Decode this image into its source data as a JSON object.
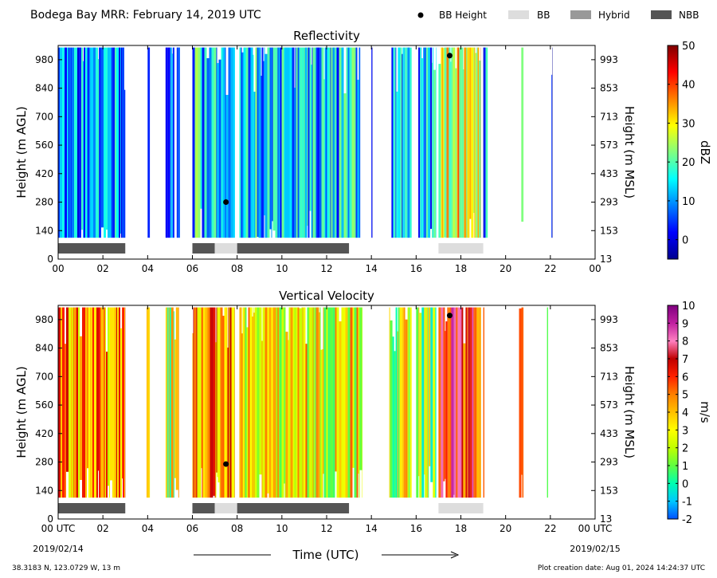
{
  "header": {
    "title": "Bodega Bay MRR:  February 14, 2019 UTC",
    "legend": [
      {
        "label": "BB Height",
        "kind": "dot",
        "color": "#000000"
      },
      {
        "label": "BB",
        "kind": "swatch",
        "color": "#dddddd"
      },
      {
        "label": "Hybrid",
        "kind": "swatch",
        "color": "#999999"
      },
      {
        "label": "NBB",
        "kind": "swatch",
        "color": "#555555"
      }
    ]
  },
  "footer": {
    "location": "38.3183 N, 123.0729 W, 13 m",
    "creation": "Plot creation date: Aug 01, 2024 14:24:37 UTC",
    "time_label": "Time (UTC)",
    "start_date": "2019/02/14",
    "end_date": "2019/02/15"
  },
  "chart_data": [
    {
      "type": "heatmap",
      "title": "Reflectivity",
      "ylabel": "Height (m AGL)",
      "y2label": "Height (m MSL)",
      "ylim": [
        0,
        1050
      ],
      "xlim": [
        0,
        24
      ],
      "x_ticks": [
        "00",
        "02",
        "04",
        "06",
        "08",
        "10",
        "12",
        "14",
        "16",
        "18",
        "20",
        "22",
        "00"
      ],
      "y_ticks": [
        0,
        140,
        280,
        420,
        560,
        700,
        840,
        980
      ],
      "y2_ticks": [
        "13",
        "153",
        "293",
        "433",
        "573",
        "713",
        "853",
        "993"
      ],
      "colorbar": {
        "label": "dBZ",
        "range": [
          -5,
          50
        ],
        "ticks": [
          "0",
          "10",
          "20",
          "30",
          "40",
          "50"
        ],
        "tick_values": [
          0,
          10,
          20,
          30,
          40,
          50
        ],
        "colors": [
          "#00008f",
          "#0000ff",
          "#0080ff",
          "#00ffff",
          "#80ff80",
          "#ffff00",
          "#ff8000",
          "#ff0000",
          "#800000"
        ]
      },
      "data_start_height_m": 105,
      "data_top_height_m": 1040,
      "precip_bands_hours": [
        [
          0,
          3
        ],
        [
          4.0,
          4.1
        ],
        [
          4.8,
          5.2
        ],
        [
          5.3,
          5.45
        ],
        [
          6.0,
          7.9
        ],
        [
          8.1,
          13.5
        ],
        [
          14.0,
          14.05
        ],
        [
          14.9,
          15.8
        ],
        [
          16.1,
          16.9
        ],
        [
          17.0,
          18.9
        ],
        [
          19.0,
          19.2
        ],
        [
          20.7,
          20.8
        ],
        [
          22.05,
          22.1
        ]
      ],
      "band_level_dbz": [
        9,
        10,
        7,
        9,
        14,
        13,
        8,
        9,
        12,
        28,
        9,
        16,
        2
      ],
      "bb_points": [
        {
          "hour": 7.5,
          "height_m": 280
        },
        {
          "hour": 17.5,
          "height_m": 1000
        }
      ],
      "classification": [
        {
          "start_hour": 0.0,
          "end_hour": 3.0,
          "class": "NBB"
        },
        {
          "start_hour": 6.0,
          "end_hour": 7.0,
          "class": "NBB"
        },
        {
          "start_hour": 7.0,
          "end_hour": 8.0,
          "class": "BB"
        },
        {
          "start_hour": 8.0,
          "end_hour": 13.0,
          "class": "NBB"
        },
        {
          "start_hour": 17.0,
          "end_hour": 19.0,
          "class": "BB"
        }
      ]
    },
    {
      "type": "heatmap",
      "title": "Vertical Velocity",
      "ylabel": "Height (m AGL)",
      "y2label": "Height (m MSL)",
      "ylim": [
        0,
        1050
      ],
      "xlim": [
        0,
        24
      ],
      "x_ticks": [
        "00 UTC",
        "02",
        "04",
        "06",
        "08",
        "10",
        "12",
        "14",
        "16",
        "18",
        "20",
        "22",
        "00 UTC"
      ],
      "y_ticks": [
        0,
        140,
        280,
        420,
        560,
        700,
        840,
        980
      ],
      "y2_ticks": [
        "13",
        "153",
        "293",
        "433",
        "573",
        "713",
        "853",
        "993"
      ],
      "colorbar": {
        "label": "m/s",
        "range": [
          -2,
          10
        ],
        "ticks": [
          "-2",
          "-1",
          "0",
          "1",
          "2",
          "3",
          "4",
          "5",
          "6",
          "7",
          "8",
          "9",
          "10"
        ],
        "tick_values": [
          -2,
          -1,
          0,
          1,
          2,
          3,
          4,
          5,
          6,
          7,
          8,
          9,
          10
        ],
        "colors": [
          "#0050ff",
          "#00c8ff",
          "#00ffb0",
          "#60ff40",
          "#c0ff00",
          "#ffff00",
          "#ffc000",
          "#ff8000",
          "#ff2000",
          "#c00000",
          "#ff80c0",
          "#c020a0",
          "#800080"
        ]
      },
      "data_start_height_m": 105,
      "data_top_height_m": 1040,
      "precip_bands_hours": [
        [
          0,
          3.0
        ],
        [
          3.95,
          4.1
        ],
        [
          4.8,
          5.4
        ],
        [
          6.0,
          7.9
        ],
        [
          8.1,
          13.6
        ],
        [
          14.8,
          15.8
        ],
        [
          16.0,
          16.9
        ],
        [
          17.0,
          18.9
        ],
        [
          19.0,
          19.05
        ],
        [
          20.6,
          20.8
        ],
        [
          21.85,
          21.9
        ]
      ],
      "band_level_ms": [
        4.5,
        4.2,
        2.5,
        5,
        3,
        2.5,
        2,
        6.5,
        3,
        5.5,
        1.5
      ],
      "bb_points": [
        {
          "hour": 7.5,
          "height_m": 270
        },
        {
          "hour": 17.5,
          "height_m": 1000
        }
      ],
      "classification": [
        {
          "start_hour": 0.0,
          "end_hour": 3.0,
          "class": "NBB"
        },
        {
          "start_hour": 6.0,
          "end_hour": 7.0,
          "class": "NBB"
        },
        {
          "start_hour": 7.0,
          "end_hour": 8.0,
          "class": "BB"
        },
        {
          "start_hour": 8.0,
          "end_hour": 13.0,
          "class": "NBB"
        },
        {
          "start_hour": 17.0,
          "end_hour": 19.0,
          "class": "BB"
        }
      ]
    }
  ]
}
